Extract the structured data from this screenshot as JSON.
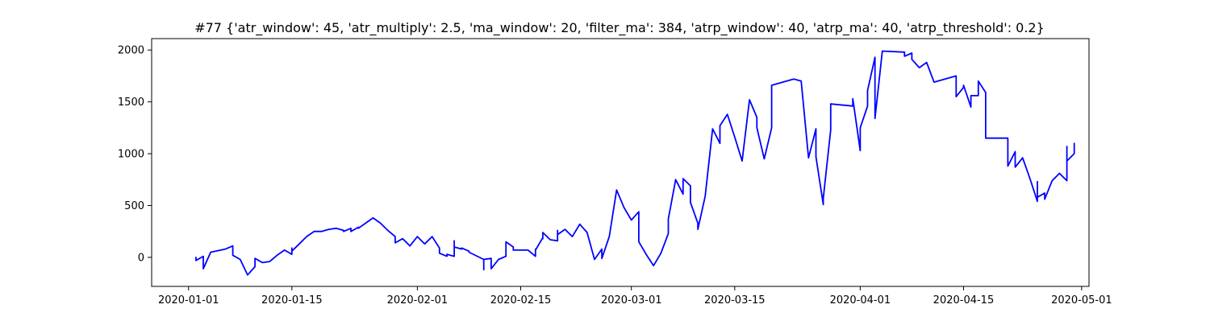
{
  "chart_data": {
    "type": "line",
    "title": "#77 {'atr_window': 45, 'atr_multiply': 2.5, 'ma_window': 20, 'filter_ma': 384, 'atrp_window': 40, 'atrp_ma': 40, 'atrp_threshold': 0.2}",
    "xlabel": "",
    "ylabel": "",
    "x_axis_type": "date",
    "xlim": [
      "2019-12-27",
      "2020-05-02"
    ],
    "ylim": [
      -280,
      2110
    ],
    "x_ticks": [
      "2020-01-01",
      "2020-01-15",
      "2020-02-01",
      "2020-02-15",
      "2020-03-01",
      "2020-03-15",
      "2020-04-01",
      "2020-04-15",
      "2020-05-01"
    ],
    "y_ticks": [
      0,
      500,
      1000,
      1500,
      2000
    ],
    "y_tick_labels": [
      "0",
      "500",
      "1000",
      "1500",
      "2000"
    ],
    "grid": false,
    "line_color": "#0000ff",
    "series": [
      {
        "x": [
          "2020-01-02",
          "2020-01-02",
          "2020-01-02",
          "2020-01-03",
          "2020-01-03",
          "2020-01-03",
          "2020-01-03",
          "2020-01-03",
          "2020-01-04",
          "2020-01-06",
          "2020-01-07",
          "2020-01-07",
          "2020-01-08",
          "2020-01-09",
          "2020-01-10",
          "2020-01-10",
          "2020-01-11",
          "2020-01-12",
          "2020-01-13",
          "2020-01-14",
          "2020-01-15",
          "2020-01-15",
          "2020-01-15",
          "2020-01-16",
          "2020-01-17",
          "2020-01-18",
          "2020-01-19",
          "2020-01-20",
          "2020-01-21",
          "2020-01-22",
          "2020-01-22",
          "2020-01-23",
          "2020-01-23",
          "2020-01-24",
          "2020-01-24",
          "2020-01-25",
          "2020-01-26",
          "2020-01-27",
          "2020-01-28",
          "2020-01-29",
          "2020-01-29",
          "2020-01-30",
          "2020-01-31",
          "2020-01-31",
          "2020-02-01",
          "2020-02-02",
          "2020-02-03",
          "2020-02-04",
          "2020-02-04",
          "2020-02-05",
          "2020-02-05",
          "2020-02-06",
          "2020-02-06",
          "2020-02-06",
          "2020-02-07",
          "2020-02-07",
          "2020-02-08",
          "2020-02-08",
          "2020-02-10",
          "2020-02-10",
          "2020-02-10",
          "2020-02-11",
          "2020-02-11",
          "2020-02-11",
          "2020-02-12",
          "2020-02-13",
          "2020-02-13",
          "2020-02-14",
          "2020-02-14",
          "2020-02-16",
          "2020-02-17",
          "2020-02-17",
          "2020-02-17",
          "2020-02-18",
          "2020-02-18",
          "2020-02-18",
          "2020-02-19",
          "2020-02-20",
          "2020-02-20",
          "2020-02-20",
          "2020-02-21",
          "2020-02-22",
          "2020-02-23",
          "2020-02-24",
          "2020-02-25",
          "2020-02-26",
          "2020-02-26",
          "2020-02-26",
          "2020-02-27",
          "2020-02-28",
          "2020-02-29",
          "2020-03-01",
          "2020-03-02",
          "2020-03-02",
          "2020-03-03",
          "2020-03-04",
          "2020-03-05",
          "2020-03-06",
          "2020-03-06",
          "2020-03-07",
          "2020-03-08",
          "2020-03-08",
          "2020-03-09",
          "2020-03-09",
          "2020-03-10",
          "2020-03-10",
          "2020-03-11",
          "2020-03-12",
          "2020-03-13",
          "2020-03-13",
          "2020-03-14",
          "2020-03-15",
          "2020-03-16",
          "2020-03-17",
          "2020-03-18",
          "2020-03-18",
          "2020-03-19",
          "2020-03-20",
          "2020-03-20",
          "2020-03-23",
          "2020-03-24",
          "2020-03-25",
          "2020-03-26",
          "2020-03-26",
          "2020-03-27",
          "2020-03-27",
          "2020-03-28",
          "2020-03-28",
          "2020-03-31",
          "2020-03-31",
          "2020-04-01",
          "2020-04-01",
          "2020-04-02",
          "2020-04-02",
          "2020-04-03",
          "2020-04-03",
          "2020-04-04",
          "2020-04-07",
          "2020-04-07",
          "2020-04-08",
          "2020-04-08",
          "2020-04-09",
          "2020-04-10",
          "2020-04-11",
          "2020-04-14",
          "2020-04-14",
          "2020-04-15",
          "2020-04-15",
          "2020-04-16",
          "2020-04-16",
          "2020-04-17",
          "2020-04-17",
          "2020-04-18",
          "2020-04-18",
          "2020-04-18",
          "2020-04-21",
          "2020-04-21",
          "2020-04-22",
          "2020-04-22",
          "2020-04-23",
          "2020-04-24",
          "2020-04-25",
          "2020-04-25",
          "2020-04-25",
          "2020-04-26",
          "2020-04-26",
          "2020-04-27",
          "2020-04-28",
          "2020-04-29",
          "2020-04-29",
          "2020-04-29",
          "2020-04-29",
          "2020-04-30",
          "2020-04-30",
          "2020-04-30",
          "2020-04-30",
          "2020-04-30",
          "2020-04-30",
          "2020-04-30",
          "2020-04-30",
          "2020-04-30"
        ],
        "y": [
          0,
          0,
          -30,
          10,
          10,
          -110,
          -10,
          -110,
          50,
          80,
          110,
          20,
          -20,
          -170,
          -90,
          -10,
          -50,
          -40,
          20,
          70,
          30,
          90,
          60,
          130,
          200,
          250,
          250,
          270,
          280,
          260,
          250,
          280,
          250,
          290,
          280,
          330,
          380,
          330,
          260,
          200,
          140,
          180,
          110,
          110,
          200,
          130,
          200,
          90,
          40,
          10,
          30,
          10,
          160,
          100,
          80,
          90,
          60,
          50,
          -20,
          -120,
          -20,
          -10,
          -40,
          -110,
          -20,
          10,
          150,
          100,
          70,
          70,
          10,
          80,
          70,
          190,
          180,
          240,
          170,
          160,
          260,
          220,
          270,
          200,
          320,
          240,
          -20,
          80,
          -10,
          -10,
          200,
          650,
          480,
          360,
          440,
          150,
          30,
          -80,
          40,
          230,
          370,
          750,
          610,
          760,
          690,
          530,
          330,
          270,
          590,
          1240,
          1100,
          1270,
          1380,
          1160,
          930,
          1520,
          1350,
          1250,
          950,
          1250,
          1660,
          1720,
          1700,
          960,
          1240,
          970,
          510,
          570,
          1230,
          1480,
          1460,
          1530,
          1030,
          1250,
          1460,
          1610,
          1930,
          1340,
          1990,
          1980,
          1940,
          1970,
          1910,
          1830,
          1880,
          1690,
          1750,
          1550,
          1640,
          1660,
          1450,
          1560,
          1560,
          1700,
          1590,
          1350,
          1150,
          1150,
          880,
          1020,
          870,
          960,
          760,
          540,
          730,
          580,
          620,
          560,
          740,
          810,
          740,
          930,
          1070,
          930,
          1000,
          1100,
          1030,
          1040,
          1040,
          1040,
          1040,
          1040,
          1040
        ]
      }
    ]
  }
}
